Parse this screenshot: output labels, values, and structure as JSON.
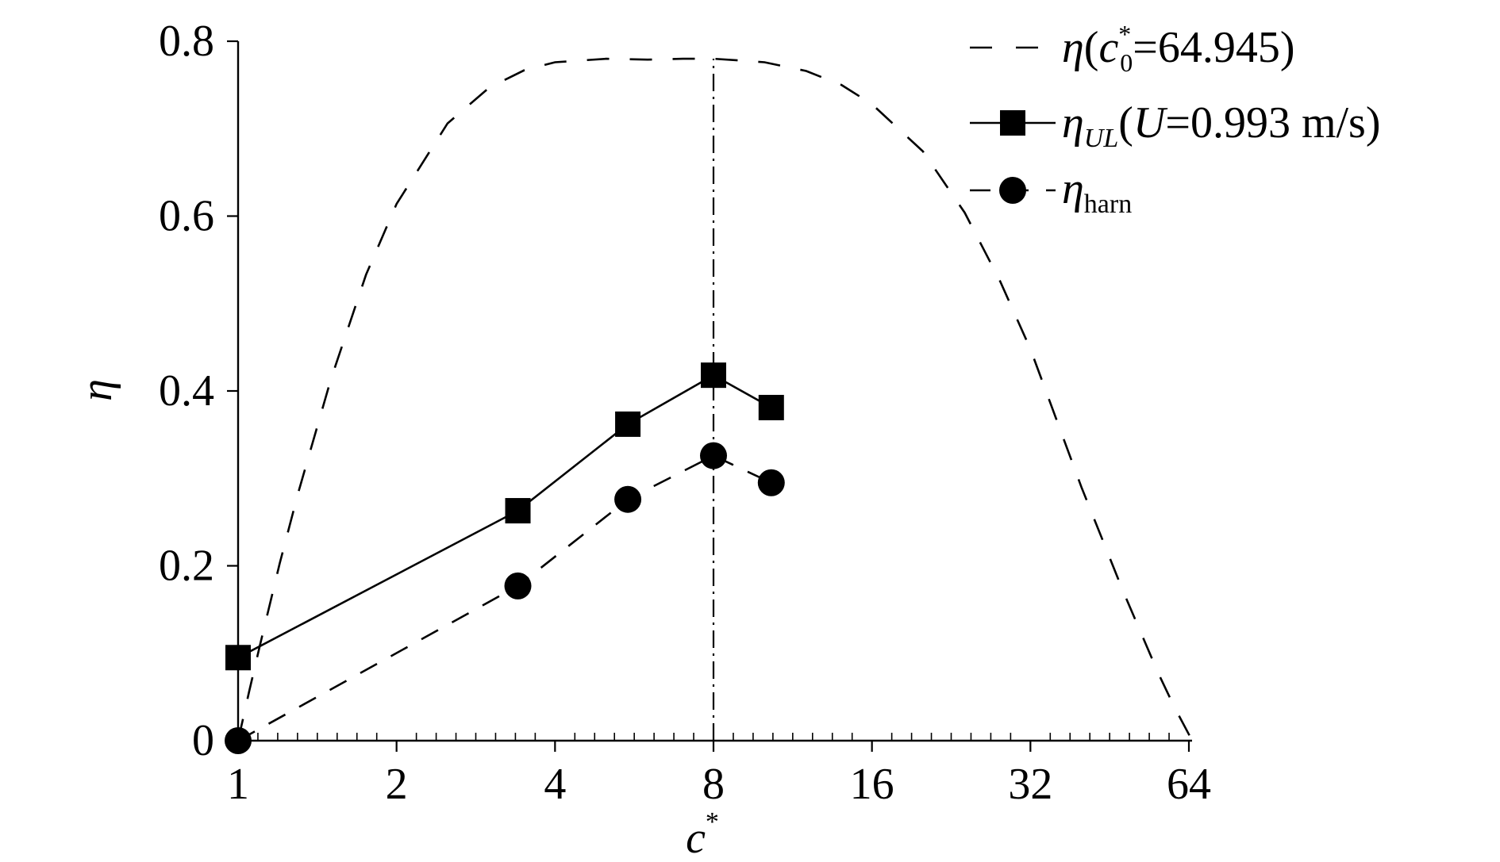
{
  "chart_data": {
    "type": "line",
    "xscale": "log2",
    "xlim": [
      1,
      64
    ],
    "ylim": [
      0,
      0.8
    ],
    "xticks": [
      1,
      2,
      4,
      8,
      16,
      32,
      64
    ],
    "xtick_labels": [
      "1",
      "2",
      "4",
      "8",
      "16",
      "32",
      "64"
    ],
    "yticks": [
      0,
      0.2,
      0.4,
      0.6,
      0.8
    ],
    "ytick_labels": [
      "0",
      "0.2",
      "0.4",
      "0.6",
      "0.8"
    ],
    "xlabel": "c*",
    "ylabel": "η",
    "vline_x": 8,
    "legend_placement": "top-right",
    "grid": false,
    "series": [
      {
        "name": "η(c*0=64.945)",
        "style": "dashed",
        "marker": "none",
        "peak_value": 0.78,
        "peak_x": 8.06,
        "x": [
          1,
          1.05,
          1.1,
          1.2,
          1.3,
          1.5,
          1.75,
          2,
          2.5,
          3,
          3.5,
          4,
          5,
          6,
          7,
          8,
          9,
          10,
          12,
          14,
          16,
          20,
          24,
          28,
          32,
          40,
          48,
          56,
          60,
          64.945
        ],
        "values": [
          0,
          0.057,
          0.109,
          0.203,
          0.283,
          0.413,
          0.533,
          0.614,
          0.706,
          0.747,
          0.767,
          0.776,
          0.78,
          0.779,
          0.78,
          0.78,
          0.778,
          0.776,
          0.766,
          0.75,
          0.728,
          0.674,
          0.604,
          0.526,
          0.448,
          0.29,
          0.171,
          0.077,
          0.039,
          0
        ]
      },
      {
        "name": "ηUL(U=0.993 m/s)",
        "style": "solid",
        "marker": "square",
        "x": [
          1,
          3.4,
          5.5,
          8,
          10.3
        ],
        "values": [
          0.095,
          0.263,
          0.362,
          0.418,
          0.381
        ]
      },
      {
        "name": "ηharn",
        "style": "dashed",
        "marker": "circle",
        "x": [
          1,
          3.4,
          5.5,
          8,
          10.3
        ],
        "values": [
          0,
          0.177,
          0.276,
          0.326,
          0.295
        ]
      }
    ]
  },
  "legend_text": {
    "eta": "η",
    "l1_open": "(",
    "l1_c": "c",
    "l1_sup": "*",
    "l1_sub": "0",
    "l1_rest": "=64.945)",
    "l2_sub": "UL",
    "l2_open": "(",
    "l2_u": "U",
    "l2_rest": "=0.993 m/s)",
    "l3_sub": "harn"
  },
  "axis_text": {
    "xlabel_main": "c",
    "xlabel_sup": "*",
    "ylabel": "η"
  },
  "colors": {
    "ink": "#000000",
    "background": "#ffffff"
  }
}
